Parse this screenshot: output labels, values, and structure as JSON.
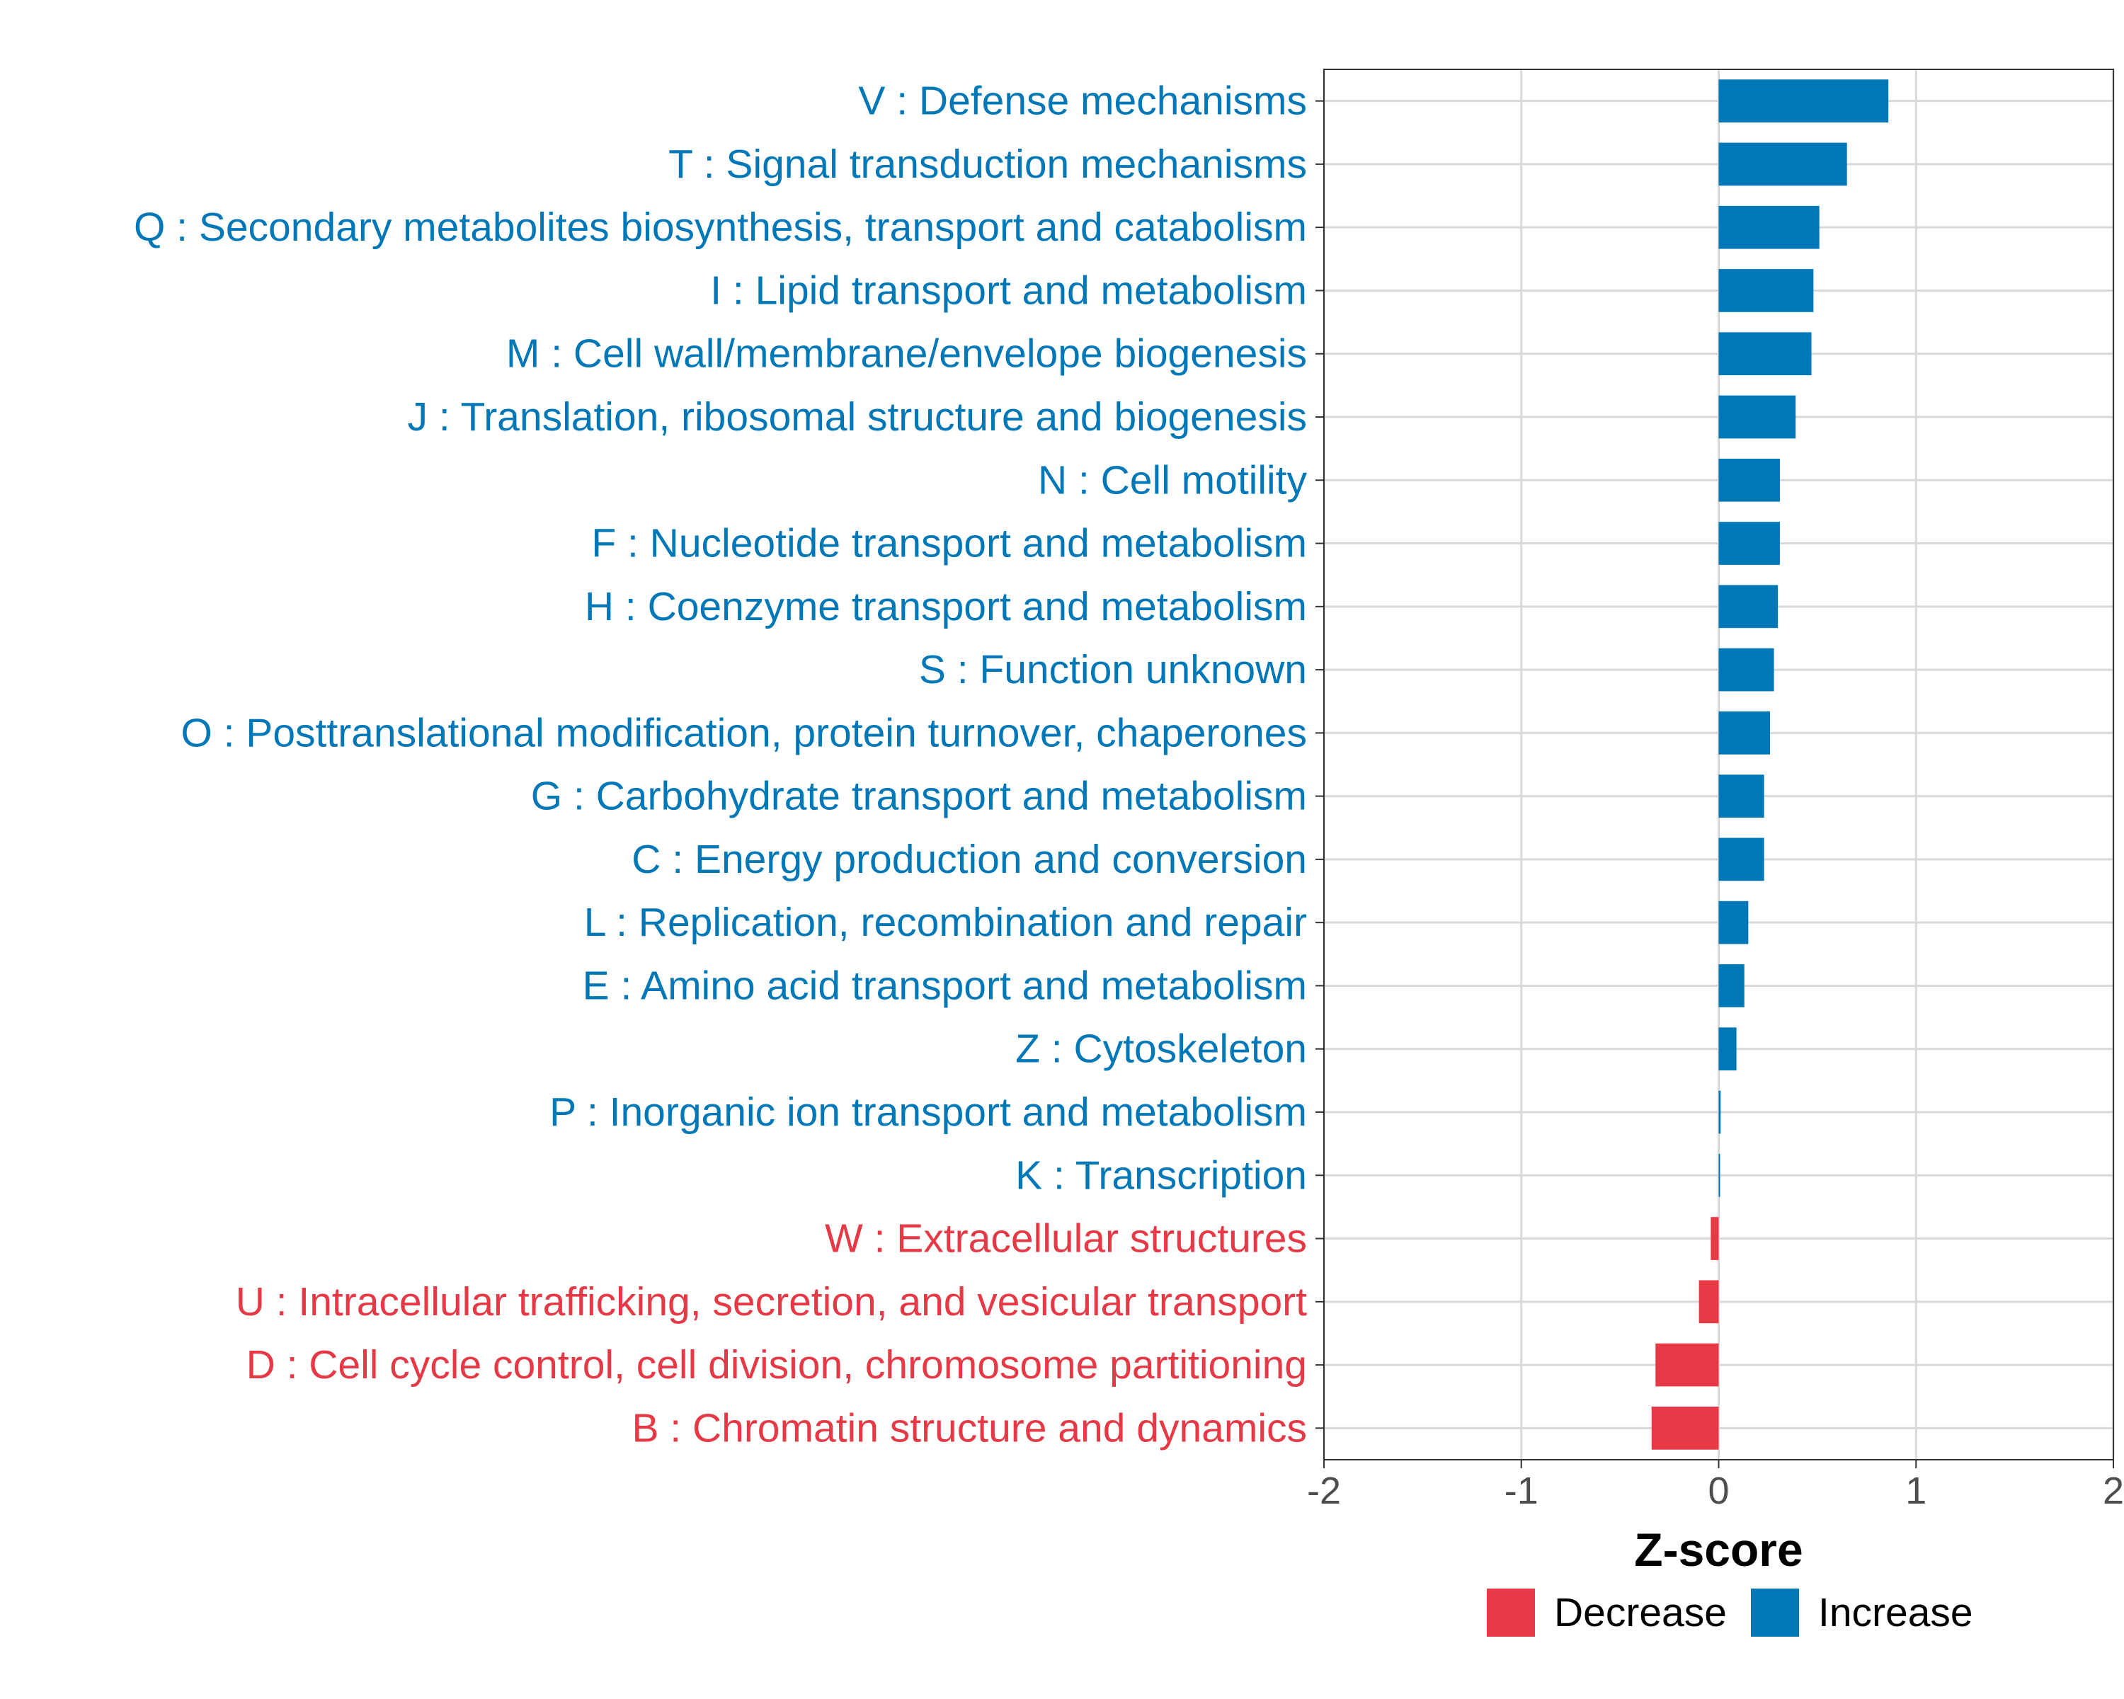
{
  "chart_data": {
    "type": "bar",
    "orientation": "horizontal",
    "title": "",
    "xlabel": "Z-score",
    "ylabel": "",
    "xlim": [
      -2,
      2
    ],
    "xticks": [
      -2,
      -1,
      0,
      1,
      2
    ],
    "xtick_labels": [
      "-2",
      "-1",
      "0",
      "1",
      "2"
    ],
    "grid": true,
    "legend_position": "bottom",
    "colors": {
      "Decrease": "#E63946",
      "Increase": "#0077B6"
    },
    "legend": [
      {
        "name": "Decrease",
        "color": "#E63946"
      },
      {
        "name": "Increase",
        "color": "#0077B6"
      }
    ],
    "categories": [
      "V : Defense mechanisms",
      "T : Signal transduction mechanisms",
      "Q : Secondary metabolites biosynthesis, transport and catabolism",
      "I : Lipid transport and metabolism",
      "M : Cell wall/membrane/envelope biogenesis",
      "J : Translation, ribosomal structure and biogenesis",
      "N : Cell motility",
      "F : Nucleotide transport and metabolism",
      "H : Coenzyme transport and metabolism",
      "S : Function unknown",
      "O : Posttranslational modification, protein turnover, chaperones",
      "G : Carbohydrate transport and metabolism",
      "C : Energy production and conversion",
      "L : Replication, recombination and repair",
      "E : Amino acid transport and metabolism",
      "Z : Cytoskeleton",
      "P : Inorganic ion transport and metabolism",
      "K : Transcription",
      "W : Extracellular structures",
      "U : Intracellular trafficking, secretion, and vesicular transport",
      "D : Cell cycle control, cell division, chromosome partitioning",
      "B : Chromatin structure and dynamics"
    ],
    "values": [
      0.86,
      0.65,
      0.51,
      0.48,
      0.47,
      0.39,
      0.31,
      0.31,
      0.3,
      0.28,
      0.26,
      0.23,
      0.23,
      0.15,
      0.13,
      0.09,
      0.01,
      0.005,
      -0.04,
      -0.1,
      -0.32,
      -0.34
    ],
    "groups": [
      "Increase",
      "Increase",
      "Increase",
      "Increase",
      "Increase",
      "Increase",
      "Increase",
      "Increase",
      "Increase",
      "Increase",
      "Increase",
      "Increase",
      "Increase",
      "Increase",
      "Increase",
      "Increase",
      "Increase",
      "Increase",
      "Decrease",
      "Decrease",
      "Decrease",
      "Decrease"
    ]
  }
}
